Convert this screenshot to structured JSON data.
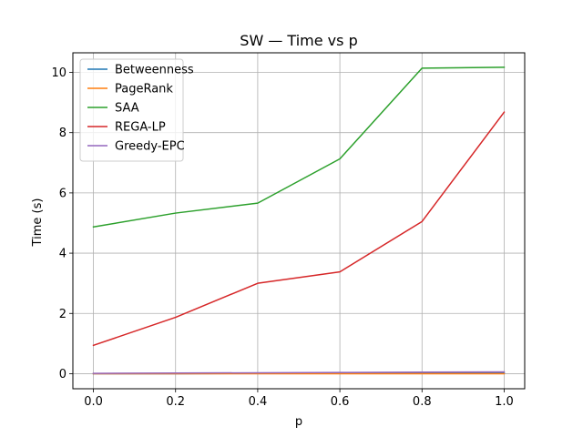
{
  "chart_data": {
    "type": "line",
    "title": "SW — Time vs p",
    "xlabel": "p",
    "ylabel": "Time (s)",
    "x": [
      0.0,
      0.2,
      0.4,
      0.6,
      0.8,
      1.0
    ],
    "xlim": [
      -0.05,
      1.05
    ],
    "ylim": [
      -0.5,
      10.65
    ],
    "xticks": [
      0.0,
      0.2,
      0.4,
      0.6,
      0.8,
      1.0
    ],
    "xtick_labels": [
      "0.0",
      "0.2",
      "0.4",
      "0.6",
      "0.8",
      "1.0"
    ],
    "yticks": [
      0,
      2,
      4,
      6,
      8,
      10
    ],
    "ytick_labels": [
      "0",
      "2",
      "4",
      "6",
      "8",
      "10"
    ],
    "grid": true,
    "legend_position": "top-left",
    "series": [
      {
        "name": "Betweenness",
        "color": "#1f77b4",
        "values": [
          0.0,
          0.0,
          0.01,
          0.01,
          0.02,
          0.02
        ]
      },
      {
        "name": "PageRank",
        "color": "#ff7f0e",
        "values": [
          0.0,
          0.0,
          0.0,
          0.0,
          0.0,
          0.0
        ]
      },
      {
        "name": "SAA",
        "color": "#2ca02c",
        "values": [
          4.87,
          5.33,
          5.66,
          7.13,
          10.14,
          10.17
        ]
      },
      {
        "name": "REGA-LP",
        "color": "#d62728",
        "values": [
          0.94,
          1.87,
          3.0,
          3.38,
          5.05,
          8.68
        ]
      },
      {
        "name": "Greedy-EPC",
        "color": "#9467bd",
        "values": [
          0.01,
          0.02,
          0.03,
          0.04,
          0.05,
          0.06
        ]
      }
    ]
  }
}
